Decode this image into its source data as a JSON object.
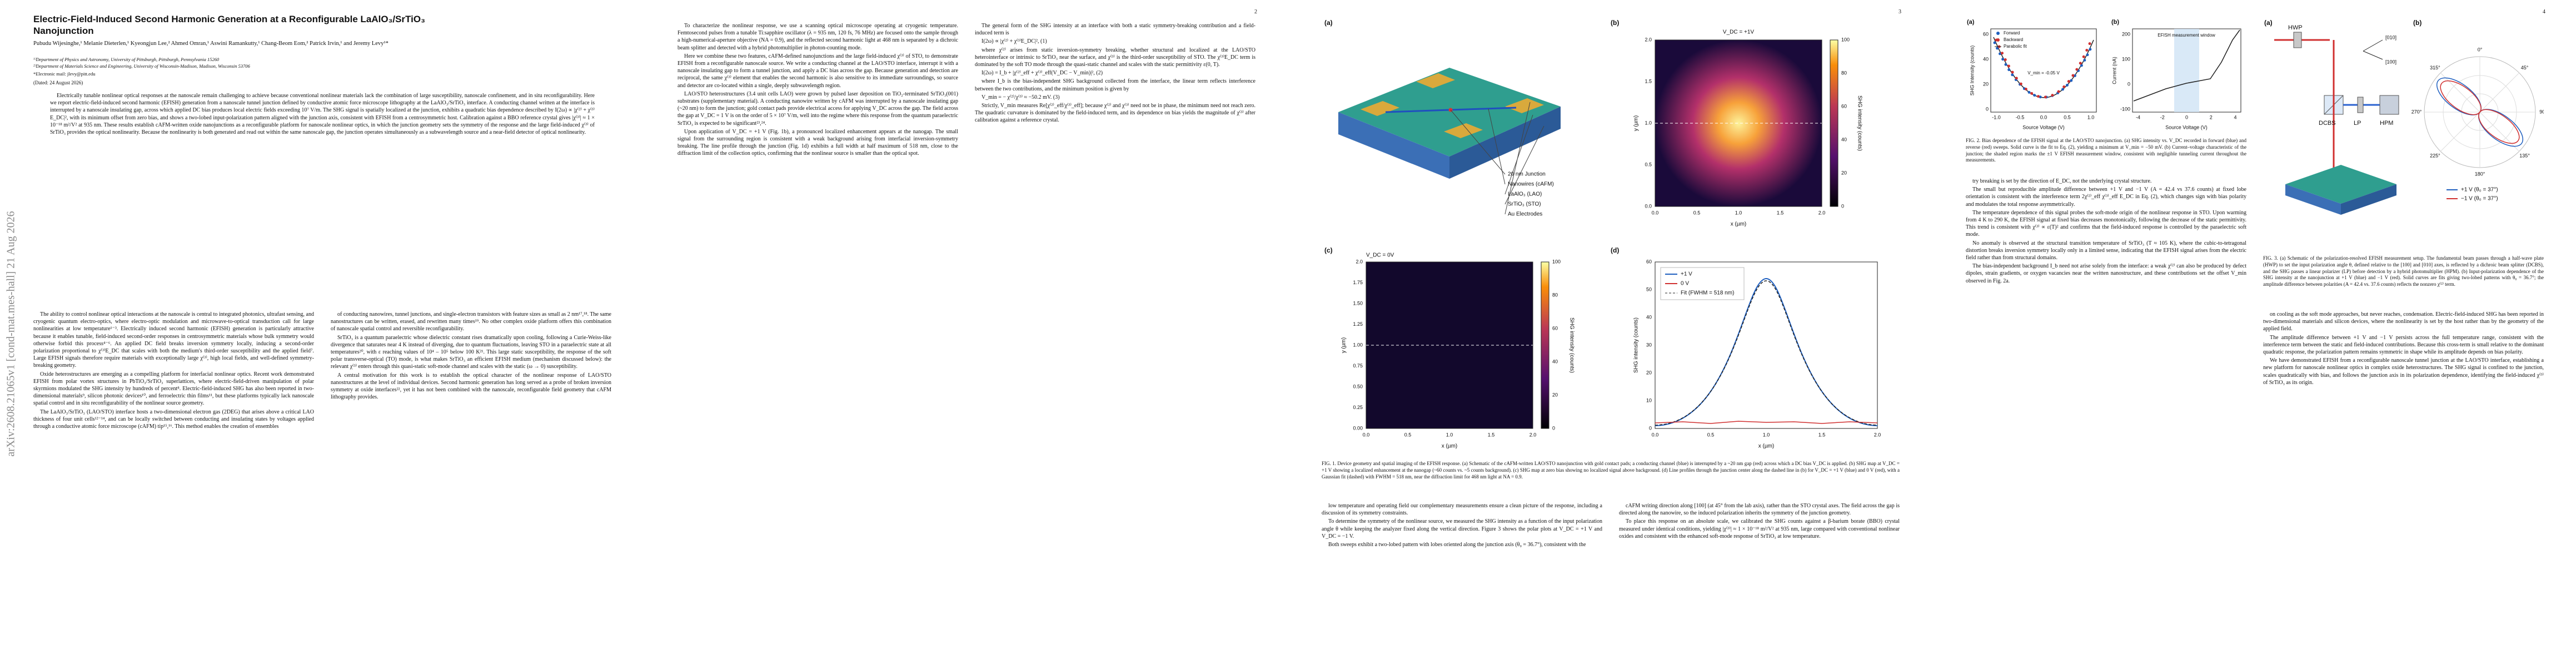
{
  "arxiv_stamp": "arXiv:2608.21065v1  [cond-mat.mes-hall]  21 Aug 2026",
  "page_numbers": [
    "2",
    "3",
    "4"
  ],
  "header": {
    "title": "Electric-Field-Induced Second Harmonic Generation at a Reconfigurable LaAlO₃/SrTiO₃ Nanojunction",
    "authors": "Pubudu Wijesinghe,¹ Melanie Dieterlen,¹ Kyeongjun Lee,² Ahmed Omran,¹ Aswini Ramankutty,¹ Chang-Beom Eom,² Patrick Irvin,¹ and Jeremy Levy¹*",
    "affiliations": [
      "¹⁾Department of Physics and Astronomy, University of Pittsburgh, Pittsburgh, Pennsylvania 15260",
      "²⁾Department of Materials Science and Engineering, University of Wisconsin-Madison, Madison, Wisconsin 53706"
    ],
    "email": "*Electronic mail: jlevy@pitt.edu",
    "date": "(Dated: 24 August 2026)",
    "abstract": "Electrically tunable nonlinear optical responses at the nanoscale remain challenging to achieve because conventional nonlinear materials lack the combination of large susceptibility, nanoscale confinement, and in situ reconfigurability. Here we report electric-field-induced second harmonic (EFISH) generation from a nanoscale tunnel junction defined by conductive atomic force microscope lithography at the LaAlO₃/SrTiO₃ interface. A conducting channel written at the interface is interrupted by a nanoscale insulating gap, across which applied DC bias produces local electric fields exceeding 10⁷ V/m. The SHG signal is spatially localized at the junction, exhibits a quadratic bias dependence described by I(2ω) ∝ |χ⁽²⁾ + χ⁽³⁾E_DC|², with its minimum offset from zero bias, and shows a two-lobed input-polarization pattern aligned with the junction axis, consistent with EFISH from a centrosymmetric host. Calibration against a BBO reference crystal gives |χ⁽³⁾| ≈ 1 × 10⁻¹⁸ m²/V² at 935 nm. These results establish cAFM-written oxide nanojunctions as a reconfigurable platform for nanoscale nonlinear optics, in which the junction geometry sets the symmetry of the response and the large field-induced χ⁽³⁾ of SrTiO₃ provides the optical nonlinearity. Because the nonlinearity is both generated and read out within the same nanoscale gap, the junction operates simultaneously as a subwavelength source and a near-field detector of optical nonlinearity."
  },
  "body": {
    "page1": {
      "col1": [
        "The ability to control nonlinear optical interactions at the nanoscale is central to integrated photonics, ultrafast sensing, and cryogenic quantum electro-optics, where electro-optic modulation and microwave-to-optical transduction call for large nonlinearities at low temperature¹⁻³. Electrically induced second harmonic (EFISH) generation is particularly attractive because it enables tunable, field-induced second-order responses in centrosymmetric materials whose bulk symmetry would otherwise forbid this process⁴⁻⁶. An applied DC field breaks inversion symmetry locally, inducing a second-order polarization proportional to χ⁽³⁾E_DC that scales with both the medium's third-order susceptibility and the applied field⁷. Large EFISH signals therefore require materials with exceptionally large χ⁽³⁾, high local fields, and well-defined symmetry-breaking geometry.",
        "Oxide heterostructures are emerging as a compelling platform for interfacial nonlinear optics. Recent work demonstrated EFISH from polar vortex structures in PbTiO₃/SrTiO₃ superlattices, where electric-field-driven manipulation of polar skyrmions modulated the SHG intensity by hundreds of percent⁸. Electric-field-induced SHG has also been reported in two-dimensional materials⁹, silicon photonic devices¹⁰, and ferroelectric thin films¹¹, but these platforms typically lack nanoscale spatial control and in situ reconfigurability of the nonlinear source geometry.",
        "The LaAlO₃/SrTiO₃ (LAO/STO) interface hosts a two-dimensional electron gas (2DEG) that arises above a critical LAO thickness of four unit cells¹²⁻¹⁴, and can be locally switched between conducting and insulating states by voltages applied through a conductive atomic force microscope (cAFM) tip¹⁵,¹⁶. This method enables the creation of ensembles"
      ],
      "col2": [
        "of conducting nanowires, tunnel junctions, and single-electron transistors with feature sizes as small as 2 nm¹⁷,¹⁸. The same nanostructures can be written, erased, and rewritten many times¹⁹. No other complex oxide platform offers this combination of nanoscale spatial control and reversible reconfigurability.",
        "SrTiO₃ is a quantum paraelectric whose dielectric constant rises dramatically upon cooling, following a Curie-Weiss-like divergence that saturates near 4 K instead of diverging, due to quantum fluctuations, leaving STO in a paraelectric state at all temperatures²⁰, with ε reaching values of 10⁴ – 10⁵ below 100 K²¹. This large static susceptibility, the response of the soft polar transverse-optical (TO) mode, is what makes SrTiO₃ an efficient EFISH medium (mechanism discussed below): the relevant χ⁽³⁾ enters through this quasi-static soft-mode channel and scales with the static (ω → 0) susceptibility.",
        "A central motivation for this work is to establish the optical character of the nonlinear response of LAO/STO nanostructures at the level of individual devices. Second harmonic generation has long served as a probe of broken inversion symmetry at oxide interfaces²², yet it has not been combined with the nanoscale, reconfigurable field geometry that cAFM lithography provides."
      ]
    },
    "page2": {
      "col1": [
        "To characterize the nonlinear response, we use a scanning optical microscope operating at cryogenic temperature. Femtosecond pulses from a tunable Ti:sapphire oscillator (λ = 935 nm, 120 fs, 76 MHz) are focused onto the sample through a high-numerical-aperture objective (NA = 0.9), and the reflected second harmonic light at 468 nm is separated by a dichroic beam splitter and detected with a hybrid photomultiplier in photon-counting mode.",
        "Here we combine these two features, cAFM-defined nanojunctions and the large field-induced χ⁽³⁾ of STO, to demonstrate EFISH from a reconfigurable nanoscale source. We write a conducting channel at the LAO/STO interface, interrupt it with a nanoscale insulating gap to form a tunnel junction, and apply a DC bias across the gap. Because generation and detection are reciprocal, the same χ⁽³⁾ element that enables the second harmonic is also sensitive to its immediate surroundings, so source and detector are co-located within a single, deeply subwavelength region.",
        "LAO/STO heterostructures (3.4 unit cells LAO) were grown by pulsed laser deposition on TiO₂-terminated SrTiO₃(001) substrates (supplementary material). A conducting nanowire written by cAFM was interrupted by a nanoscale insulating gap (~20 nm) to form the junction; gold contact pads provide electrical access for applying V_DC across the gap. The field across the gap at V_DC = 1 V is on the order of 5 × 10⁷ V/m, well into the regime where this response from the quantum paraelectric SrTiO₃ is expected to be significant²³,²⁴.",
        "Upon application of V_DC = +1 V (Fig. 1b), a pronounced localized enhancement appears at the nanogap. The small signal from the surrounding region is consistent with a weak background arising from interfacial inversion-symmetry breaking. The line profile through the junction (Fig. 1d) exhibits a full width at half maximum of 518 nm, close to the diffraction limit of the collection optics, confirming that the nonlinear source is smaller than the optical spot."
      ],
      "col2": [
        "The general form of the SHG intensity at an interface with both a static symmetry-breaking contribution and a field-induced term is",
        "I(2ω) ∝ |χ⁽²⁾ + χ⁽³⁾E_DC|²,   (1)",
        "where χ⁽²⁾ arises from static inversion-symmetry breaking, whether structural and localized at the LAO/STO heterointerface or intrinsic to SrTiO₃ near the surface, and χ⁽³⁾ is the third-order susceptibility of STO. The χ⁽³⁾E_DC term is dominated by the soft TO mode through the quasi-static channel and scales with the static permittivity ε(0, T).",
        "I(2ω) = I_b + |χ⁽²⁾_eff + χ⁽³⁾_eff(V_DC − V_min)|²,   (2)",
        "where I_b is the bias-independent SHG background collected from the interface, the linear term reflects interference between the two contributions, and the minimum position is given by",
        "V_min = − χ⁽²⁾/χ⁽³⁾ ≈ −50.2 mV.   (3)",
        "Strictly, V_min measures Re[χ⁽²⁾_eff/χ⁽³⁾_eff]; because χ⁽²⁾ and χ⁽³⁾ need not be in phase, the minimum need not reach zero. The quadratic curvature is dominated by the field-induced term, and its dependence on bias yields the magnitude of χ⁽³⁾ after calibration against a reference crystal."
      ]
    },
    "page3": {
      "col1": [
        "low temperature and operating field our complementary measurements ensure a clean picture of the response, including a discussion of its symmetry constraints.",
        "To determine the symmetry of the nonlinear source, we measured the SHG intensity as a function of the input polarization angle θ while keeping the analyzer fixed along the vertical direction. Figure 3 shows the polar plots at V_DC = +1 V and V_DC = −1 V.",
        "Both sweeps exhibit a two-lobed pattern with lobes oriented along the junction axis (θ₀ = 36.7°), consistent with the"
      ],
      "col2": [
        "cAFM writing direction along [100] (at 45° from the lab axis), rather than the STO crystal axes. The field across the gap is directed along the nanowire, so the induced polarization inherits the symmetry of the junction geometry.",
        "To place this response on an absolute scale, we calibrated the SHG counts against a β-barium borate (BBO) crystal measured under identical conditions, yielding |χ⁽³⁾| ≈ 1 × 10⁻¹⁸ m²/V² at 935 nm, large compared with conventional nonlinear oxides and consistent with the enhanced soft-mode response of SrTiO₃ at low temperature."
      ]
    },
    "page4": {
      "col1": [
        "try breaking is set by the direction of E_DC, not the underlying crystal structure.",
        "The small but reproducible amplitude difference between +1 V and −1 V (A = 42.4 vs 37.6 counts) at fixed lobe orientation is consistent with the interference term 2χ⁽²⁾_eff χ⁽³⁾_eff E_DC in Eq. (2), which changes sign with bias polarity and modulates the total response asymmetrically.",
        "The temperature dependence of this signal probes the soft-mode origin of the nonlinear response in STO. Upon warming from 4 K to 290 K, the EFISH signal at fixed bias decreases monotonically, following the decrease of the static permittivity. This trend is consistent with χ⁽³⁾ ∝ ε(T)² and confirms that the field-induced response is controlled by the paraelectric soft mode.",
        "No anomaly is observed at the structural transition temperature of SrTiO₃ (T ≈ 105 K), where the cubic-to-tetragonal distortion breaks inversion symmetry locally only in a limited sense, indicating that the EFISH signal arises from the electric field rather than from structural domains.",
        "The bias-independent background I_b need not arise solely from the interface: a weak χ⁽²⁾ can also be produced by defect dipoles, strain gradients, or oxygen vacancies near the written nanostructure, and these contributions set the offset V_min observed in Fig. 2a."
      ],
      "col2": [
        "on cooling as the soft mode approaches, but never reaches, condensation. Electric-field-induced SHG has been reported in two-dimensional materials and silicon devices, where the nonlinearity is set by the host rather than by the geometry of the applied field.",
        "The amplitude difference between +1 V and −1 V persists across the full temperature range, consistent with the interference term between the static and field-induced contributions. Because this cross-term is small relative to the dominant quadratic response, the polarization pattern remains symmetric in shape while its amplitude depends on bias polarity.",
        "We have demonstrated EFISH from a reconfigurable nanoscale tunnel junction at the LAO/STO interface, establishing a new platform for nanoscale nonlinear optics in complex oxide heterostructures. The SHG signal is confined to the junction, scales quadratically with bias, and follows the junction axis in its polarization dependence, identifying the field-induced χ⁽³⁾ of SrTiO₃ as its origin."
      ]
    }
  },
  "figures": {
    "fig1": {
      "panels": [
        "(a)",
        "(b)",
        "(c)",
        "(d)"
      ],
      "a_labels": [
        "20 nm Junction",
        "Nanowires (cAFM)",
        "LaAlO₃ (LAO)",
        "SrTiO₃ (STO)",
        "Au Electrodes"
      ],
      "b": {
        "annotation": "V_DC = +1V",
        "xlabel": "x (µm)",
        "ylabel": "y (µm)",
        "colorbar_label": "SHG intensity (counts)",
        "xticks": [
          "0.0",
          "0.5",
          "1.0",
          "1.5",
          "2.0"
        ],
        "yticks": [
          "2.0",
          "1.5",
          "1.0",
          "0.5",
          "0.0"
        ],
        "colorbar_ticks": [
          "100",
          "80",
          "60",
          "40",
          "20",
          "0"
        ]
      },
      "c": {
        "annotation": "V_DC = 0V",
        "xlabel": "x (µm)",
        "ylabel": "y (µm)",
        "colorbar_label": "SHG intensity (counts)",
        "xticks": [
          "0.0",
          "0.5",
          "1.0",
          "1.5",
          "2.0"
        ],
        "yticks": [
          "2.0",
          "1.75",
          "1.50",
          "1.25",
          "1.00",
          "0.75",
          "0.50",
          "0.25",
          "0.00"
        ],
        "colorbar_ticks": [
          "100",
          "80",
          "60",
          "40",
          "20",
          "0"
        ]
      },
      "d": {
        "legend": [
          "+1 V",
          "0 V",
          "Fit (FWHM = 518 nm)"
        ],
        "xlabel": "x (µm)",
        "ylabel": "SHG intensity (counts)",
        "xticks": [
          "0.0",
          "0.5",
          "1.0",
          "1.5",
          "2.0"
        ],
        "yticks": [
          "60",
          "50",
          "40",
          "30",
          "20",
          "10",
          "0"
        ]
      },
      "caption": "FIG. 1. Device geometry and spatial imaging of the EFISH response. (a) Schematic of the cAFM-written LAO/STO nanojunction with gold contact pads; a conducting channel (blue) is interrupted by a ~20 nm gap (red) across which a DC bias V_DC is applied. (b) SHG map at V_DC = +1 V showing a localized enhancement at the nanogap (~60 counts vs. ~5 counts background). (c) SHG map at zero bias showing no localized signal above background. (d) Line profiles through the junction center along the dashed line in (b) for V_DC = +1 V (blue) and 0 V (red), with a Gaussian fit (dashed) with FWHM = 518 nm, near the diffraction limit for 468 nm light at NA = 0.9."
    },
    "fig2": {
      "panels": [
        "(a)",
        "(b)"
      ],
      "a": {
        "legend": [
          "Forward",
          "Backward",
          "Parabolic fit"
        ],
        "annotation": "V_min = -0.05 V",
        "xlabel": "Source Voltage (V)",
        "ylabel": "SHG Intensity (counts)",
        "xticks": [
          "-1.0",
          "-0.5",
          "0.0",
          "0.5",
          "1.0"
        ],
        "yticks": [
          "60",
          "40",
          "20",
          "0"
        ]
      },
      "b": {
        "annotation": "EFISH measurement window",
        "xlabel": "Source Voltage (V)",
        "ylabel": "Current (nA)",
        "xticks": [
          "-4",
          "-2",
          "0",
          "2",
          "4"
        ],
        "yticks": [
          "200",
          "100",
          "0",
          "-100"
        ]
      },
      "caption": "FIG. 2. Bias dependence of the EFISH signal at the LAO/STO nanojunction. (a) SHG intensity vs. V_DC recorded in forward (blue) and reverse (red) sweeps. Solid curve is the fit to Eq. (2), yielding a minimum at V_min = −50 mV. (b) Current–voltage characteristic of the junction; the shaded region marks the ±1 V EFISH measurement window, consistent with negligible tunneling current throughout the measurements."
    },
    "fig3": {
      "panels": [
        "(a)",
        "(b)"
      ],
      "a_labels": [
        "HWP",
        "[010]",
        "[100]",
        "DCBS",
        "LP",
        "HPM"
      ],
      "b_angles": [
        "0°",
        "45°",
        "90°",
        "135°",
        "180°",
        "225°",
        "270°",
        "315°"
      ],
      "b_legend": [
        "+1 V (θ₀ = 37°)",
        "−1 V (θ₀ = 37°)"
      ],
      "caption": "FIG. 3. (a) Schematic of the polarization-resolved EFISH measurement setup. The fundamental beam passes through a half-wave plate (HWP) to set the input polarization angle θ, defined relative to the [100] and [010] axes, is reflected by a dichroic beam splitter (DCBS), and the SHG passes a linear polarizer (LP) before detection by a hybrid photomultiplier (HPM). (b) Input-polarization dependence of the SHG intensity at the nanojunction at +1 V (blue) and −1 V (red). Solid curves are fits giving two-lobed patterns with θ₀ = 36.7°; the amplitude difference between polarities (A = 42.4 vs. 37.6 counts) reflects the nonzero χ⁽²⁾ term."
    }
  }
}
